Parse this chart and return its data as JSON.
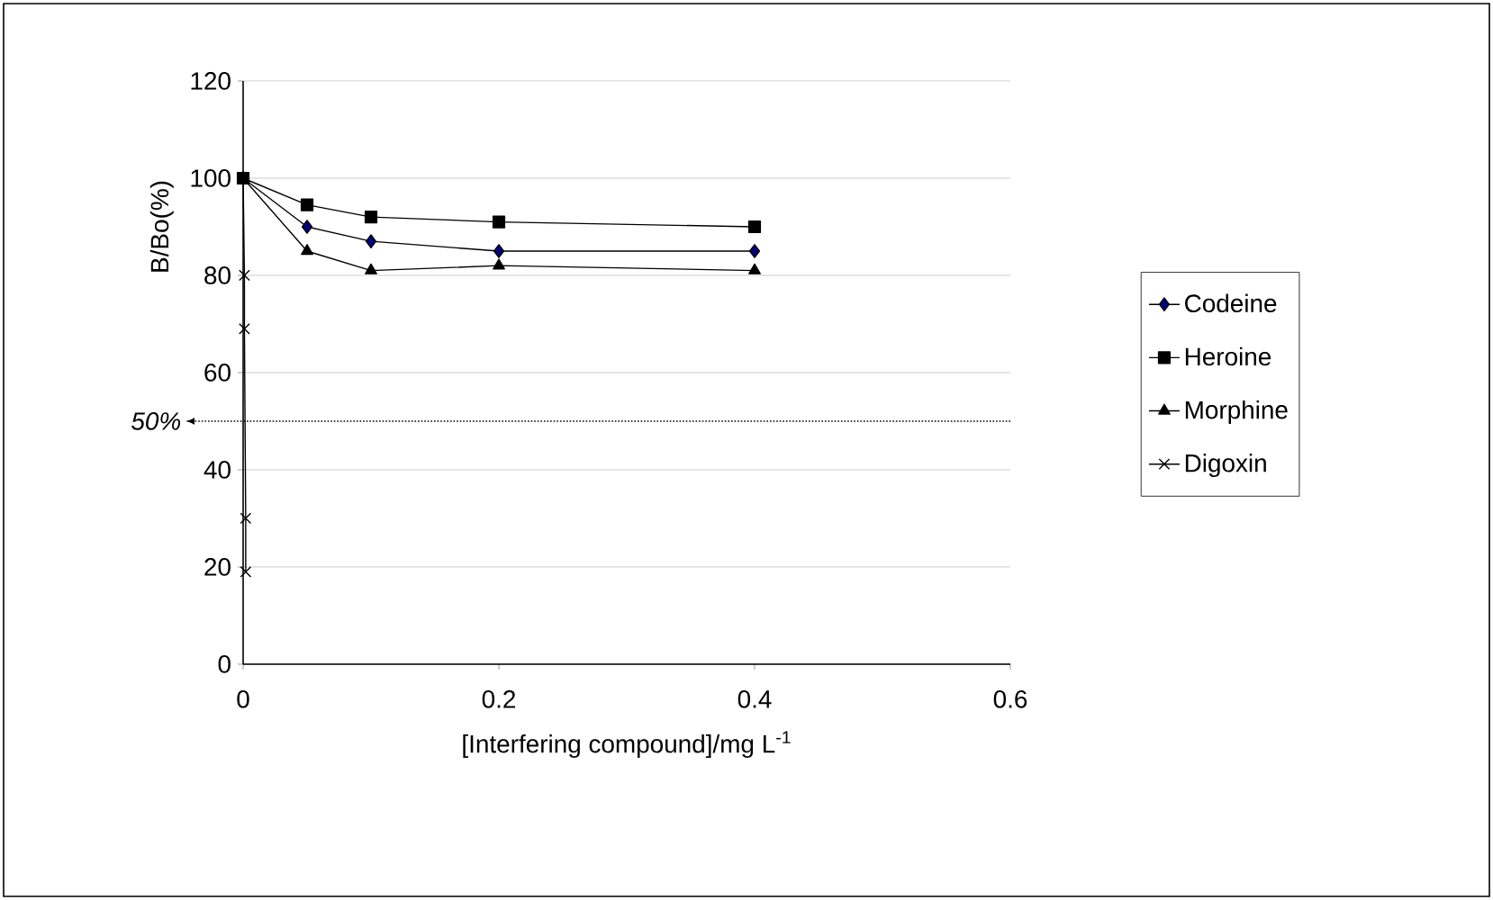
{
  "chart_data": {
    "type": "line",
    "xlabel": "[Interfering compound]/mg L$^{-1}$",
    "ylabel": "B/Bo(%)",
    "series": [
      {
        "name": "Codeine",
        "color": "#000080",
        "marker": "diamond",
        "x": [
          0,
          0.05,
          0.1,
          0.2,
          0.4
        ],
        "values": [
          100,
          90,
          87,
          85,
          85
        ]
      },
      {
        "name": "Heroine",
        "color": "#000000",
        "marker": "square",
        "x": [
          0,
          0.05,
          0.1,
          0.2,
          0.4
        ],
        "values": [
          100,
          94.5,
          92,
          91,
          90
        ]
      },
      {
        "name": "Morphine",
        "color": "#000000",
        "marker": "triangle",
        "x": [
          0,
          0.05,
          0.1,
          0.2,
          0.4
        ],
        "values": [
          100,
          85,
          81,
          82,
          81
        ]
      },
      {
        "name": "Digoxin",
        "color": "#000000",
        "marker": "cross",
        "x": [
          0,
          0.001,
          0.001,
          0.002,
          0.002
        ],
        "values": [
          100,
          80,
          69,
          30,
          19
        ]
      }
    ],
    "xlim": [
      0,
      0.6
    ],
    "ylim": [
      0,
      120
    ],
    "xticks": [
      0,
      0.2,
      0.4,
      0.6
    ],
    "yticks": [
      0,
      20,
      40,
      60,
      80,
      100,
      120
    ],
    "grid": "y",
    "legend": "right",
    "ref_lines": [
      {
        "axis": "y",
        "value": 50,
        "label": "50%",
        "line_style": "dotted"
      }
    ]
  }
}
